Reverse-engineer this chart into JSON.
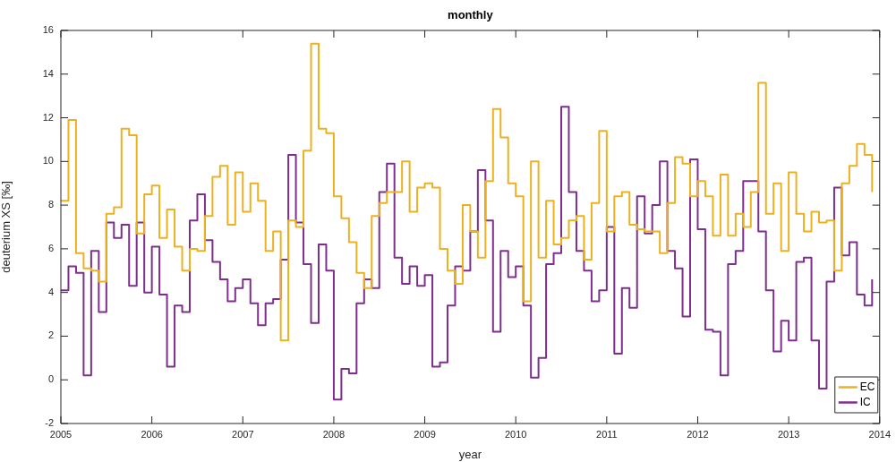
{
  "chart_data": {
    "type": "step",
    "title": "monthly",
    "xlabel": "year",
    "ylabel": "deuterium XS [‰]",
    "x": [
      "2005-01",
      "2005-02",
      "2005-03",
      "2005-04",
      "2005-05",
      "2005-06",
      "2005-07",
      "2005-08",
      "2005-09",
      "2005-10",
      "2005-11",
      "2005-12",
      "2006-01",
      "2006-02",
      "2006-03",
      "2006-04",
      "2006-05",
      "2006-06",
      "2006-07",
      "2006-08",
      "2006-09",
      "2006-10",
      "2006-11",
      "2006-12",
      "2007-01",
      "2007-02",
      "2007-03",
      "2007-04",
      "2007-05",
      "2007-06",
      "2007-07",
      "2007-08",
      "2007-09",
      "2007-10",
      "2007-11",
      "2007-12",
      "2008-01",
      "2008-02",
      "2008-03",
      "2008-04",
      "2008-05",
      "2008-06",
      "2008-07",
      "2008-08",
      "2008-09",
      "2008-10",
      "2008-11",
      "2008-12",
      "2009-01",
      "2009-02",
      "2009-03",
      "2009-04",
      "2009-05",
      "2009-06",
      "2009-07",
      "2009-08",
      "2009-09",
      "2009-10",
      "2009-11",
      "2009-12",
      "2010-01",
      "2010-02",
      "2010-03",
      "2010-04",
      "2010-05",
      "2010-06",
      "2010-07",
      "2010-08",
      "2010-09",
      "2010-10",
      "2010-11",
      "2010-12",
      "2011-01",
      "2011-02",
      "2011-03",
      "2011-04",
      "2011-05",
      "2011-06",
      "2011-07",
      "2011-08",
      "2011-09",
      "2011-10",
      "2011-11",
      "2011-12",
      "2012-01",
      "2012-02",
      "2012-03",
      "2012-04",
      "2012-05",
      "2012-06",
      "2012-07",
      "2012-08",
      "2012-09",
      "2012-10",
      "2012-11",
      "2012-12",
      "2013-01",
      "2013-02",
      "2013-03",
      "2013-04",
      "2013-05",
      "2013-06",
      "2013-07",
      "2013-08",
      "2013-09",
      "2013-10",
      "2013-11",
      "2013-12"
    ],
    "series": [
      {
        "name": "EC",
        "color": "#edb120",
        "values": [
          8.2,
          11.9,
          5.8,
          5.1,
          5.0,
          4.5,
          7.6,
          7.9,
          11.5,
          11.2,
          6.7,
          8.5,
          8.9,
          6.5,
          7.8,
          6.1,
          5.0,
          6.0,
          5.9,
          7.5,
          9.3,
          9.8,
          7.1,
          9.5,
          7.7,
          9.0,
          8.2,
          5.9,
          6.8,
          1.8,
          7.3,
          7.0,
          10.5,
          15.4,
          11.5,
          11.3,
          8.4,
          7.4,
          6.3,
          4.9,
          4.2,
          7.5,
          8.1,
          8.6,
          8.6,
          10.0,
          7.7,
          8.8,
          9.0,
          8.8,
          6.0,
          5.0,
          4.4,
          8.0,
          6.8,
          5.6,
          9.1,
          12.4,
          11.1,
          9.0,
          8.4,
          3.6,
          10.0,
          5.6,
          8.2,
          6.2,
          6.5,
          7.3,
          7.5,
          5.5,
          8.1,
          11.4,
          6.8,
          8.4,
          8.6,
          7.1,
          6.9,
          6.8,
          6.8,
          5.8,
          8.1,
          10.2,
          9.9,
          8.4,
          9.1,
          8.4,
          6.6,
          9.4,
          6.6,
          7.6,
          7.0,
          8.6,
          13.6,
          7.6,
          9.0,
          5.9,
          9.5,
          7.6,
          6.8,
          7.7,
          7.2,
          7.3,
          5.0,
          9.0,
          9.8,
          10.8,
          10.3,
          8.6
        ]
      },
      {
        "name": "IC",
        "color": "#7e2f8e",
        "values": [
          4.1,
          5.2,
          4.9,
          0.2,
          5.9,
          3.1,
          7.2,
          6.5,
          7.1,
          4.3,
          7.2,
          4.0,
          6.1,
          3.9,
          0.6,
          3.4,
          3.1,
          7.3,
          8.5,
          6.4,
          5.4,
          4.6,
          3.6,
          4.2,
          4.6,
          3.5,
          2.5,
          3.5,
          3.7,
          5.5,
          10.3,
          7.2,
          5.3,
          2.6,
          6.2,
          5.0,
          -0.9,
          0.5,
          0.3,
          3.5,
          4.6,
          4.2,
          8.6,
          9.9,
          5.6,
          4.4,
          5.2,
          4.3,
          4.8,
          0.6,
          0.8,
          3.4,
          5.2,
          5.0,
          6.8,
          9.6,
          7.3,
          2.2,
          5.9,
          4.7,
          5.2,
          3.4,
          0.1,
          1.0,
          5.3,
          5.8,
          12.5,
          8.6,
          5.9,
          5.0,
          3.6,
          4.1,
          7.0,
          1.2,
          4.2,
          3.3,
          8.4,
          6.7,
          8.0,
          10.0,
          5.9,
          5.1,
          2.9,
          10.1,
          6.9,
          2.3,
          2.2,
          0.2,
          5.3,
          5.9,
          9.1,
          9.1,
          6.8,
          4.1,
          1.3,
          2.7,
          1.8,
          5.4,
          5.6,
          1.8,
          -0.4,
          4.5,
          8.8,
          5.7,
          6.3,
          3.9,
          3.4,
          4.6
        ]
      }
    ],
    "xlim": [
      "2005",
      "2014"
    ],
    "xticks": [
      "2005",
      "2006",
      "2007",
      "2008",
      "2009",
      "2010",
      "2011",
      "2012",
      "2013",
      "2014"
    ],
    "ylim": [
      -2,
      16
    ],
    "yticks": [
      -2,
      0,
      2,
      4,
      6,
      8,
      10,
      12,
      14,
      16
    ],
    "legend": "bottom right",
    "grid": false
  }
}
